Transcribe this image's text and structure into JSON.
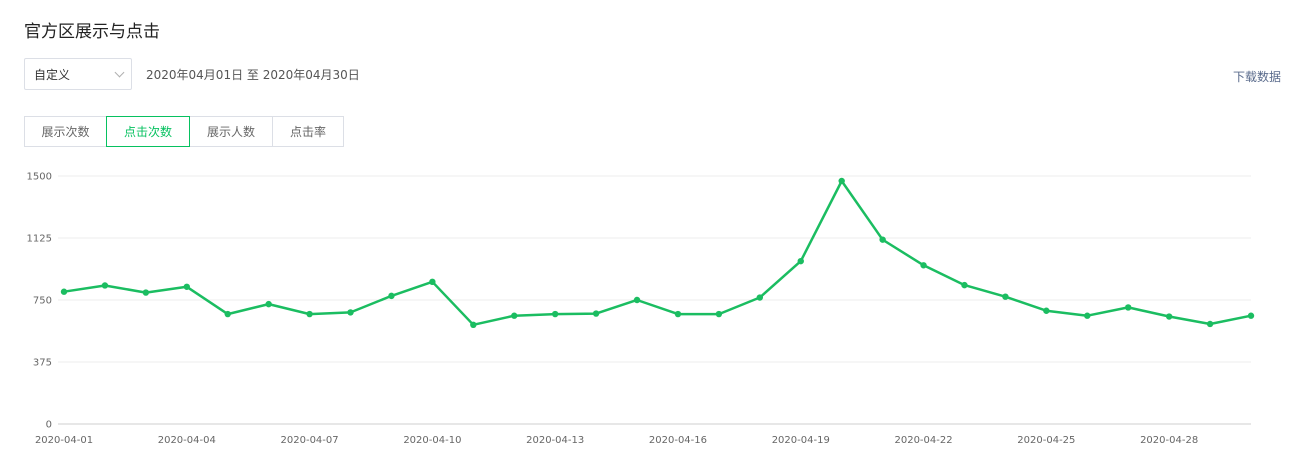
{
  "header": {
    "title": "官方区展示与点击"
  },
  "filters": {
    "range_select_value": "自定义",
    "date_range_text": "2020年04月01日 至 2020年04月30日",
    "download_label": "下载数据"
  },
  "tabs": [
    {
      "label": "展示次数",
      "active": false
    },
    {
      "label": "点击次数",
      "active": true
    },
    {
      "label": "展示人数",
      "active": false
    },
    {
      "label": "点击率",
      "active": false
    }
  ],
  "colors": {
    "accent": "#07c160",
    "line": "#1bbd61",
    "grid": "#ececec"
  },
  "chart_data": {
    "type": "line",
    "x": [
      "2020-04-01",
      "2020-04-02",
      "2020-04-03",
      "2020-04-04",
      "2020-04-05",
      "2020-04-06",
      "2020-04-07",
      "2020-04-08",
      "2020-04-09",
      "2020-04-10",
      "2020-04-11",
      "2020-04-12",
      "2020-04-13",
      "2020-04-14",
      "2020-04-15",
      "2020-04-16",
      "2020-04-17",
      "2020-04-18",
      "2020-04-19",
      "2020-04-20",
      "2020-04-21",
      "2020-04-22",
      "2020-04-23",
      "2020-04-24",
      "2020-04-25",
      "2020-04-26",
      "2020-04-27",
      "2020-04-28",
      "2020-04-29",
      "2020-04-30"
    ],
    "x_tick_labels": [
      "2020-04-01",
      "2020-04-04",
      "2020-04-07",
      "2020-04-10",
      "2020-04-13",
      "2020-04-16",
      "2020-04-19",
      "2020-04-22",
      "2020-04-25",
      "2020-04-28"
    ],
    "series": [
      {
        "name": "",
        "values": [
          800,
          838,
          795,
          830,
          665,
          725,
          665,
          675,
          775,
          860,
          600,
          655,
          665,
          668,
          750,
          665,
          665,
          765,
          985,
          1470,
          1115,
          960,
          840,
          770,
          685,
          655,
          705,
          650,
          605,
          655
        ]
      }
    ],
    "ylim": [
      0,
      1500
    ],
    "yticks": [
      0,
      375,
      750,
      1125,
      1500
    ],
    "grid": true,
    "title": "",
    "xlabel": "",
    "ylabel": ""
  }
}
